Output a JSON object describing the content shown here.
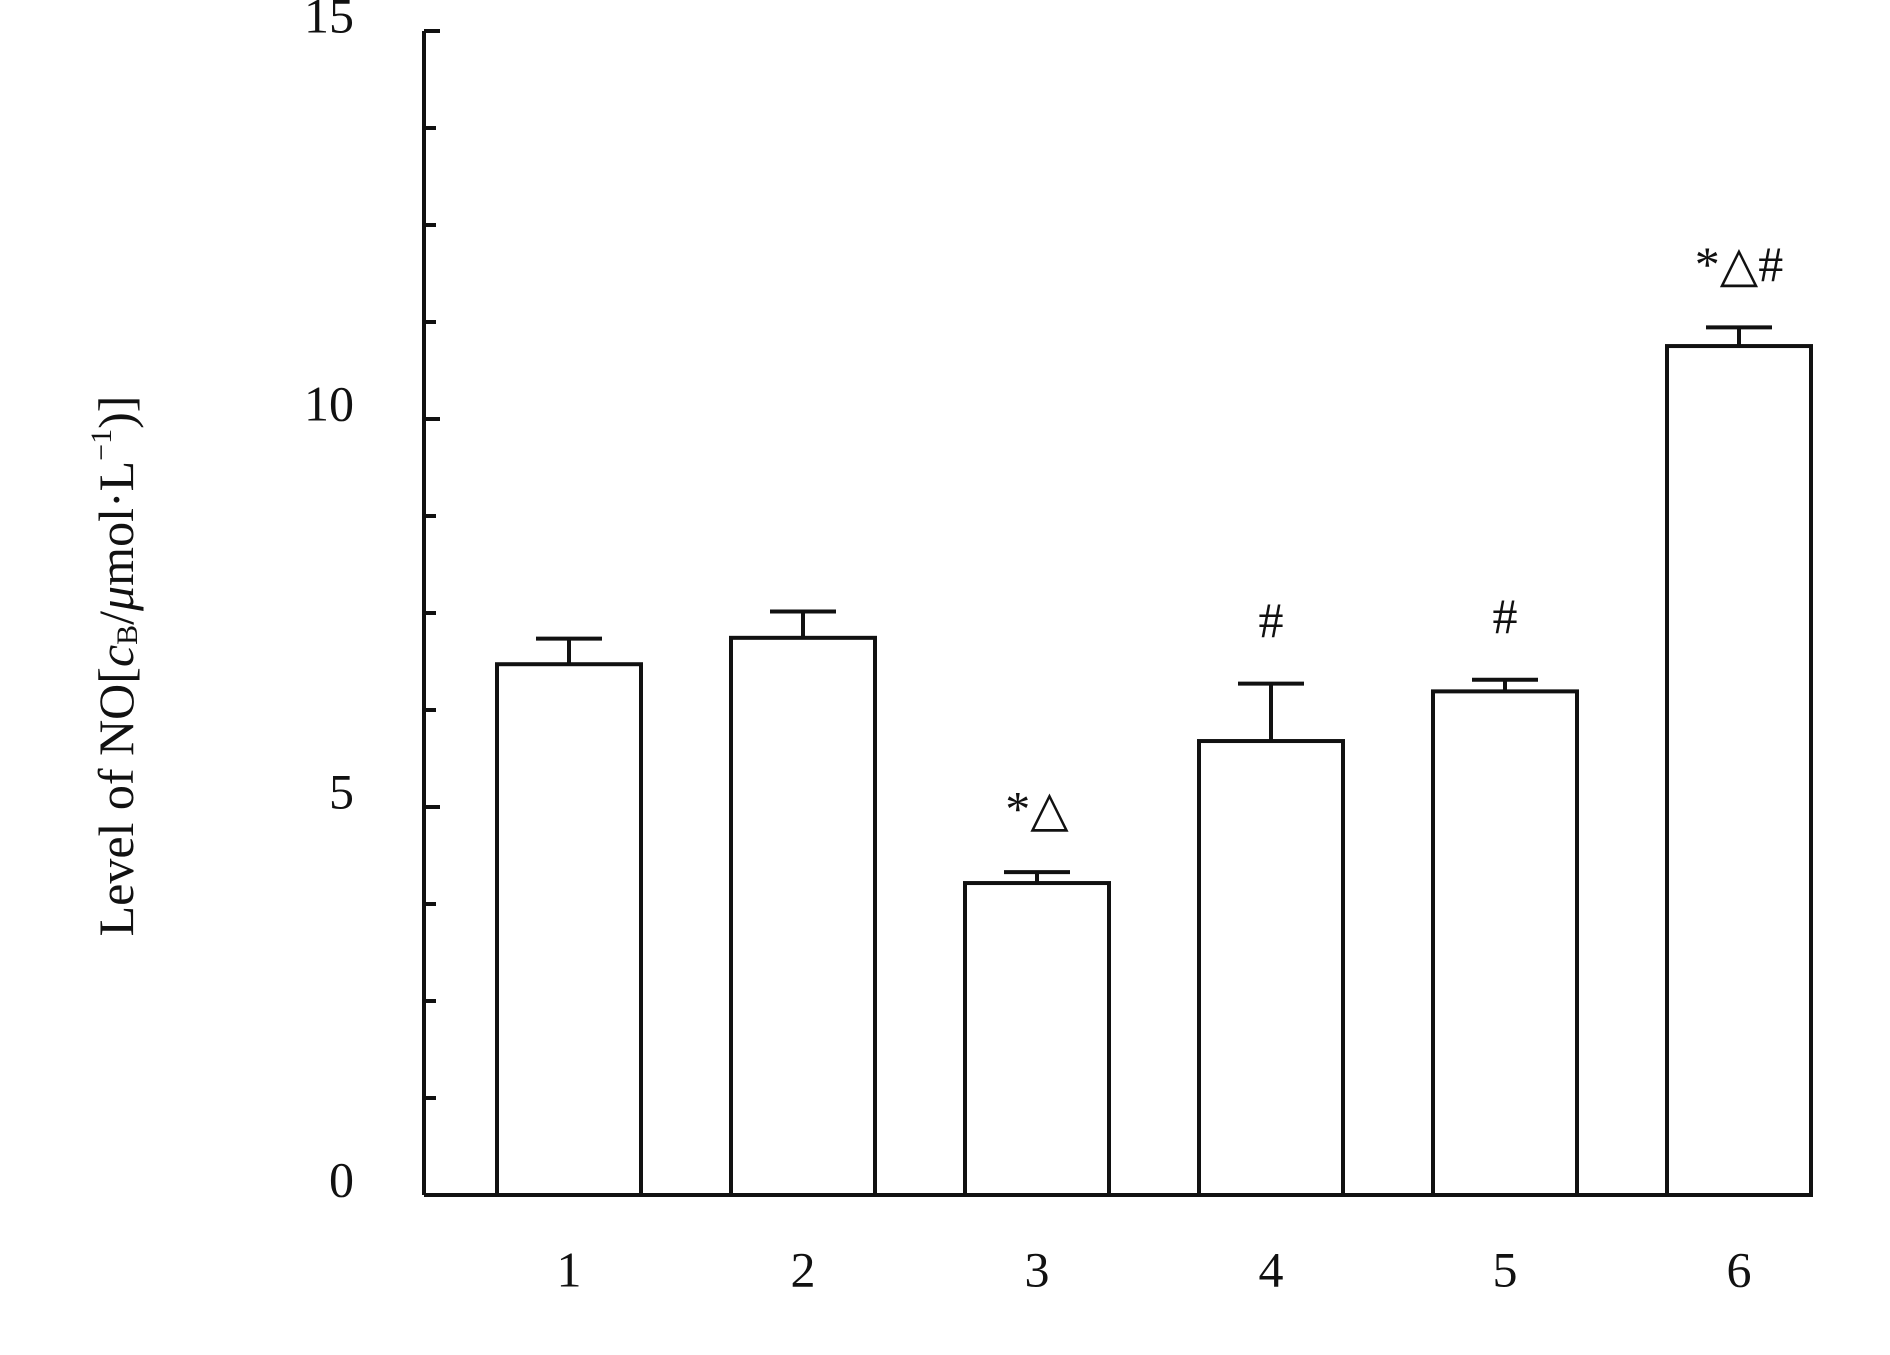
{
  "chart_data": {
    "type": "bar",
    "y_label": [
      "Level of NO[",
      "c",
      "B",
      "/",
      "μ",
      "mol·L",
      "−1",
      ")]"
    ],
    "categories": [
      "1",
      "2",
      "3",
      "4",
      "5",
      "6"
    ],
    "values": [
      6.84,
      7.18,
      4.02,
      5.85,
      6.49,
      10.94
    ],
    "errors": [
      0.33,
      0.34,
      0.14,
      0.74,
      0.15,
      0.24
    ],
    "annotations": [
      null,
      null,
      "*△",
      "#",
      "#",
      "*△#"
    ],
    "color": "#ffffff",
    "ylim": [
      0,
      15
    ],
    "yticks": [
      0,
      5,
      10,
      15
    ],
    "yminor_ticks": [
      1.25,
      2.5,
      3.75,
      6.25,
      7.5,
      8.75,
      11.25,
      12.5,
      13.75
    ]
  }
}
